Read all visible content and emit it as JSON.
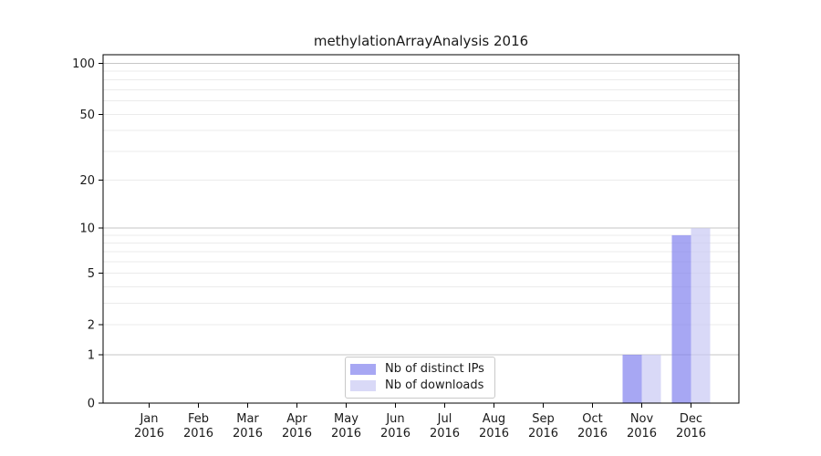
{
  "chart_data": {
    "type": "bar",
    "title": "methylationArrayAnalysis 2016",
    "categories": [
      {
        "month": "Jan",
        "year": "2016"
      },
      {
        "month": "Feb",
        "year": "2016"
      },
      {
        "month": "Mar",
        "year": "2016"
      },
      {
        "month": "Apr",
        "year": "2016"
      },
      {
        "month": "May",
        "year": "2016"
      },
      {
        "month": "Jun",
        "year": "2016"
      },
      {
        "month": "Jul",
        "year": "2016"
      },
      {
        "month": "Aug",
        "year": "2016"
      },
      {
        "month": "Sep",
        "year": "2016"
      },
      {
        "month": "Oct",
        "year": "2016"
      },
      {
        "month": "Nov",
        "year": "2016"
      },
      {
        "month": "Dec",
        "year": "2016"
      }
    ],
    "series": [
      {
        "name": "Nb of distinct IPs",
        "color": "#8080ee",
        "values": [
          0,
          0,
          0,
          0,
          0,
          0,
          0,
          0,
          0,
          0,
          1,
          9
        ]
      },
      {
        "name": "Nb of downloads",
        "color": "#c8c8f4",
        "values": [
          0,
          0,
          0,
          0,
          0,
          0,
          0,
          0,
          0,
          0,
          1,
          10
        ]
      }
    ],
    "bar_fill_opacity": 0.69,
    "y_scale": "log1p",
    "y_ticks": [
      0,
      1,
      2,
      5,
      10,
      20,
      50,
      100
    ],
    "y_major_grid": [
      1,
      10,
      100
    ],
    "y_minor_grid": [
      2,
      3,
      4,
      5,
      6,
      7,
      8,
      9,
      20,
      30,
      40,
      50,
      60,
      70,
      80,
      90
    ],
    "ylim": [
      0,
      112
    ],
    "grid": true,
    "legend_position": "lower center inside",
    "colors": {
      "major_grid": "#c6c6c6",
      "minor_grid": "#ebebeb",
      "axis": "#000000",
      "text": "#1a1a1a",
      "background": "#ffffff"
    }
  }
}
